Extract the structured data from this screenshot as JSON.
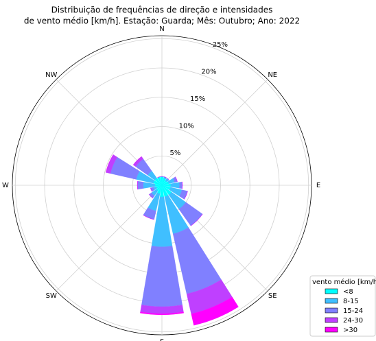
{
  "chart_data": {
    "type": "windrose",
    "title": [
      "Distribuição de frequências de direção e intensidades",
      "de vento médio [km/h]. Estação: Guarda; Mês: Outubro; Ano: 2022"
    ],
    "categories": [
      "N",
      null,
      "NE",
      null,
      "E",
      null,
      "SE",
      null,
      "S",
      null,
      "SW",
      null,
      "W",
      null,
      "NW",
      null
    ],
    "series": [
      {
        "name": "<8",
        "color": "#00ffff",
        "values": [
          1.5,
          1.2,
          1.0,
          1.2,
          1.5,
          1.5,
          2,
          2,
          2,
          1.5,
          1.2,
          1.0,
          1.2,
          1.5,
          1.5,
          1.5
        ]
      },
      {
        "name": "8-15",
        "color": "#40bfff",
        "values": [
          0,
          0.3,
          0.5,
          1,
          1.5,
          2,
          3,
          6.5,
          8.5,
          3,
          1,
          0.5,
          2,
          3,
          1.5,
          0
        ]
      },
      {
        "name": "15-24",
        "color": "#8080ff",
        "values": [
          0,
          0,
          0,
          0.5,
          0.5,
          1,
          3.5,
          10.5,
          10.2,
          1.5,
          0.5,
          0.5,
          1,
          4.5,
          2.5,
          0
        ]
      },
      {
        "name": "24-30",
        "color": "#bf40ff",
        "values": [
          0,
          0,
          0,
          0,
          0,
          0,
          0,
          3.5,
          1.2,
          0,
          0,
          0,
          0,
          0.8,
          0.5,
          0
        ]
      },
      {
        "name": ">30",
        "color": "#ff00ff",
        "values": [
          0,
          0,
          0,
          0,
          0,
          0,
          0,
          2,
          0.2,
          0,
          0,
          0,
          0,
          0,
          0,
          0
        ]
      }
    ],
    "ylim": [
      0,
      25.5
    ],
    "yticks": [
      {
        "value": 5,
        "label": "5%"
      },
      {
        "value": 10,
        "label": "10%"
      },
      {
        "value": 15,
        "label": "15%"
      },
      {
        "value": 20,
        "label": "20%"
      },
      {
        "value": 25,
        "label": "25%"
      }
    ],
    "legend_title": "vento médio [km/h]",
    "legend": "lower right",
    "grid": true
  }
}
